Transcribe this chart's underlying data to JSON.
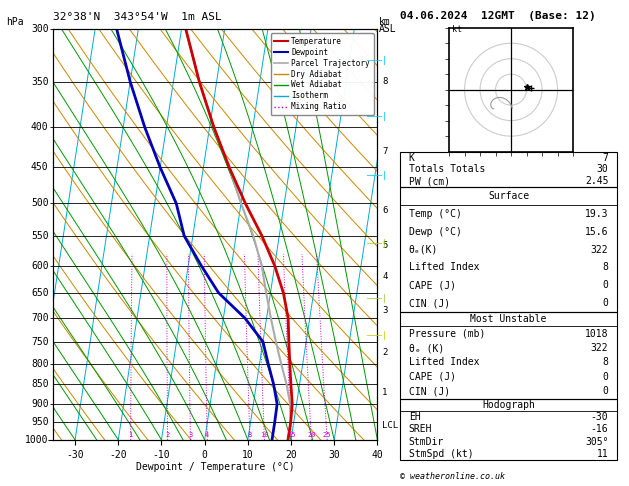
{
  "title_left": "32°38'N  343°54'W  1m ASL",
  "title_right": "04.06.2024  12GMT  (Base: 12)",
  "xlabel": "Dewpoint / Temperature (°C)",
  "p_min": 300,
  "p_max": 1000,
  "t_min": -35,
  "t_max": 40,
  "skew": 28.0,
  "pressure_levels": [
    300,
    350,
    400,
    450,
    500,
    550,
    600,
    650,
    700,
    750,
    800,
    850,
    900,
    950,
    1000
  ],
  "temp_t": [
    -19,
    -14,
    -9,
    -4,
    1,
    6,
    10,
    13,
    15,
    16,
    17,
    18,
    19,
    19.3,
    19.3
  ],
  "temp_p": [
    300,
    350,
    400,
    450,
    500,
    550,
    600,
    650,
    700,
    750,
    800,
    850,
    900,
    950,
    1000
  ],
  "dewp_t": [
    -35,
    -30,
    -25,
    -20,
    -15,
    -12,
    -7,
    -2,
    5,
    10,
    12,
    14,
    15.5,
    15.6,
    15.6
  ],
  "dewp_p": [
    300,
    350,
    400,
    450,
    500,
    550,
    600,
    650,
    700,
    750,
    800,
    850,
    900,
    950,
    1000
  ],
  "parcel_t": [
    -19,
    -14,
    -9,
    -4,
    0,
    4,
    7,
    9,
    11,
    13,
    15,
    17,
    18.5,
    19.3,
    19.3
  ],
  "parcel_p": [
    300,
    350,
    400,
    450,
    500,
    550,
    600,
    650,
    700,
    750,
    800,
    850,
    900,
    950,
    1000
  ],
  "mixing_ratios": [
    1,
    2,
    3,
    4,
    8,
    10,
    15,
    20,
    25
  ],
  "km_ticks": [
    [
      8,
      350
    ],
    [
      7,
      430
    ],
    [
      6,
      510
    ],
    [
      5,
      565
    ],
    [
      4,
      620
    ],
    [
      3,
      685
    ],
    [
      2,
      775
    ],
    [
      1,
      870
    ],
    [
      "LCL",
      960
    ]
  ],
  "surface": {
    "K": 7,
    "TotTot": 30,
    "PW": "2.45",
    "Temp": "19.3",
    "Dewp": "15.6",
    "theta_e": 322,
    "LiftedIndex": 8,
    "CAPE": 0,
    "CIN": 0
  },
  "unstable": {
    "Pressure": 1018,
    "theta_e": 322,
    "LiftedIndex": 8,
    "CAPE": 0,
    "CIN": 0
  },
  "hodograph": {
    "EH": -30,
    "SREH": -16,
    "StmDir": 305,
    "StmSpd": 11
  },
  "col_temp": "#cc0000",
  "col_dewp": "#0000bb",
  "col_parcel": "#aaaaaa",
  "col_dry": "#cc8800",
  "col_wet": "#009900",
  "col_iso": "#00aadd",
  "col_mix": "#cc00cc"
}
